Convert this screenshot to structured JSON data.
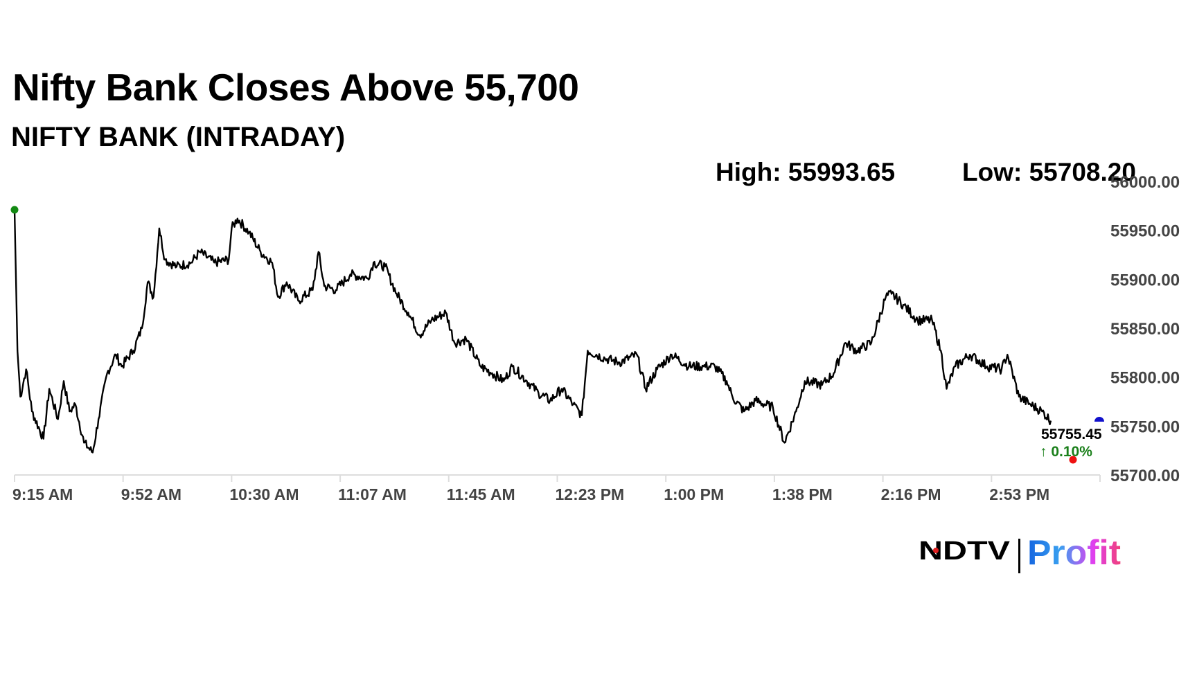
{
  "header": {
    "title": "Nifty Bank Closes Above 55,700",
    "subtitle": "NIFTY BANK (INTRADAY)",
    "high_label": "High: 55993.65",
    "low_label": "Low: 55708.20"
  },
  "logo": {
    "text_left": "NDTV",
    "text_right": "Profit"
  },
  "chart_data": {
    "type": "line",
    "title": "NIFTY BANK (INTRADAY)",
    "xlabel": "",
    "ylabel": "",
    "x_tick_labels": [
      "9:15 AM",
      "9:52 AM",
      "10:30 AM",
      "11:07 AM",
      "11:45 AM",
      "12:23 PM",
      "1:00 PM",
      "1:38 PM",
      "2:16 PM",
      "2:53 PM"
    ],
    "y_tick_labels": [
      "56000.00",
      "55950.00",
      "55900.00",
      "55850.00",
      "55800.00",
      "55750.00",
      "55700.00"
    ],
    "x_range": [
      "09:15",
      "15:30"
    ],
    "ylim": [
      55700,
      56000
    ],
    "grid": false,
    "high": 55993.65,
    "low": 55708.2,
    "last_value_label": "55755.45",
    "change_label": "↑ 0.10%",
    "colors": {
      "line": "#000000",
      "change": "#1a7f1a",
      "start_marker": "#138a13",
      "low_marker": "#ee1111",
      "close_marker": "#1111cc",
      "axis_text": "#444444"
    },
    "series": [
      {
        "x": [
          "09:15",
          "09:16",
          "09:17",
          "09:19",
          "09:21",
          "09:25",
          "09:27",
          "09:30",
          "09:32",
          "09:34",
          "09:36",
          "09:39",
          "09:42",
          "09:44",
          "09:47",
          "09:50",
          "09:52",
          "09:56",
          "09:59",
          "10:01",
          "10:03",
          "10:05",
          "10:07",
          "10:11",
          "10:16",
          "10:19",
          "10:24",
          "10:29",
          "10:30",
          "10:32",
          "10:36",
          "10:40",
          "10:44",
          "10:46",
          "10:49",
          "10:53",
          "10:58",
          "11:00",
          "11:02",
          "11:06",
          "11:11",
          "11:17",
          "11:19",
          "11:23",
          "11:27",
          "11:31",
          "11:35",
          "11:39",
          "11:44",
          "11:47",
          "11:51",
          "11:56",
          "12:00",
          "12:04",
          "12:07",
          "12:12",
          "12:16",
          "12:20",
          "12:24",
          "12:28",
          "12:31",
          "12:33",
          "12:39",
          "12:44",
          "12:50",
          "12:53",
          "12:57",
          "13:02",
          "13:08",
          "13:13",
          "13:17",
          "13:21",
          "13:23",
          "13:27",
          "13:31",
          "13:37",
          "13:41",
          "13:45",
          "13:48",
          "13:54",
          "13:58",
          "14:02",
          "14:06",
          "14:11",
          "14:16",
          "14:18",
          "14:22",
          "14:27",
          "14:32",
          "14:35",
          "14:37",
          "14:40",
          "14:45",
          "14:51",
          "14:56",
          "14:58",
          "15:02",
          "15:06",
          "15:10",
          "15:13"
        ],
        "values": [
          55971,
          55827,
          55780,
          55808,
          55765,
          55737,
          55788,
          55757,
          55796,
          55765,
          55772,
          55733,
          55723,
          55757,
          55804,
          55823,
          55811,
          55827,
          55850,
          55897,
          55882,
          55952,
          55920,
          55913,
          55917,
          55928,
          55917,
          55920,
          55952,
          55962,
          55948,
          55928,
          55917,
          55882,
          55897,
          55878,
          55889,
          55928,
          55893,
          55889,
          55905,
          55901,
          55917,
          55913,
          55885,
          55866,
          55843,
          55858,
          55866,
          55835,
          55839,
          55811,
          55804,
          55796,
          55811,
          55796,
          55784,
          55776,
          55788,
          55772,
          55761,
          55827,
          55819,
          55815,
          55823,
          55788,
          55808,
          55823,
          55811,
          55811,
          55811,
          55796,
          55780,
          55765,
          55776,
          55769,
          55733,
          55765,
          55796,
          55792,
          55804,
          55835,
          55827,
          55835,
          55882,
          55885,
          55874,
          55858,
          55858,
          55827,
          55788,
          55811,
          55823,
          55811,
          55808,
          55823,
          55780,
          55772,
          55765,
          55755.45
        ]
      }
    ]
  }
}
